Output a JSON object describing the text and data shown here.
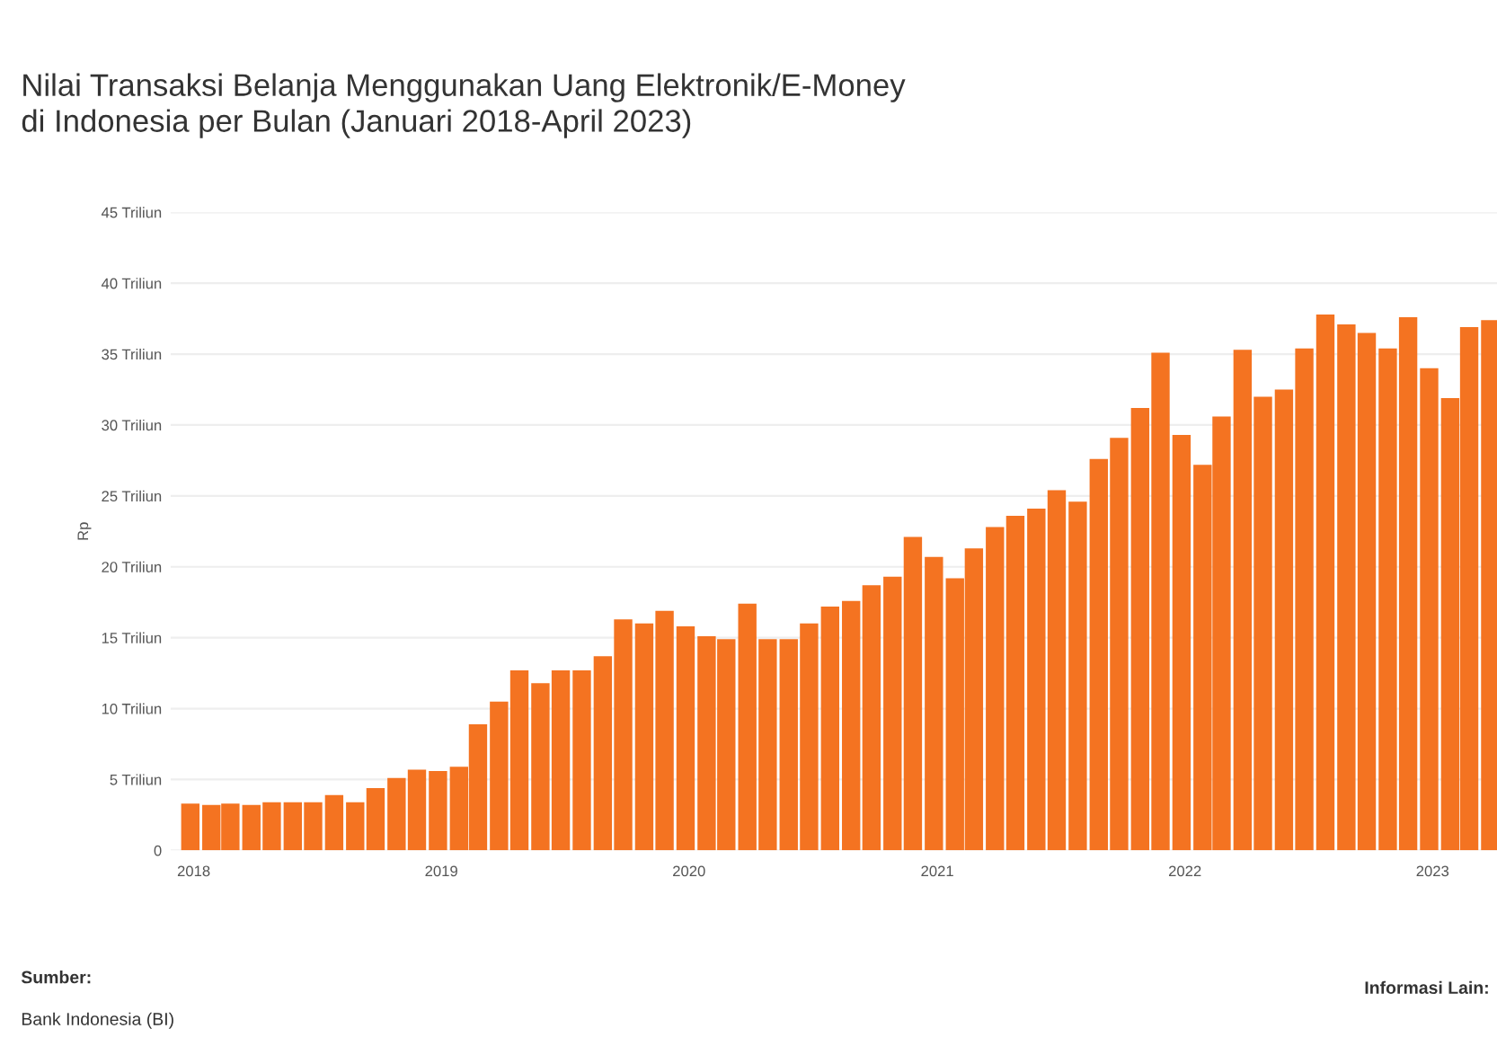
{
  "chart_data": {
    "type": "bar",
    "title": "Nilai Transaksi Belanja Menggunakan Uang Elektronik/E-Money\ndi Indonesia per Bulan (Januari 2018-April 2023)",
    "ylabel": "Rp",
    "x": [
      "2018-01",
      "2018-02",
      "2018-03",
      "2018-04",
      "2018-05",
      "2018-06",
      "2018-07",
      "2018-08",
      "2018-09",
      "2018-10",
      "2018-11",
      "2018-12",
      "2019-01",
      "2019-02",
      "2019-03",
      "2019-04",
      "2019-05",
      "2019-06",
      "2019-07",
      "2019-08",
      "2019-09",
      "2019-10",
      "2019-11",
      "2019-12",
      "2020-01",
      "2020-02",
      "2020-03",
      "2020-04",
      "2020-05",
      "2020-06",
      "2020-07",
      "2020-08",
      "2020-09",
      "2020-10",
      "2020-11",
      "2020-12",
      "2021-01",
      "2021-02",
      "2021-03",
      "2021-04",
      "2021-05",
      "2021-06",
      "2021-07",
      "2021-08",
      "2021-09",
      "2021-10",
      "2021-11",
      "2021-12",
      "2022-01",
      "2022-02",
      "2022-03",
      "2022-04",
      "2022-05",
      "2022-06",
      "2022-07",
      "2022-08",
      "2022-09",
      "2022-10",
      "2022-11",
      "2022-12",
      "2023-01",
      "2023-02",
      "2023-03",
      "2023-04"
    ],
    "values": [
      3.3,
      3.2,
      3.3,
      3.2,
      3.4,
      3.4,
      3.4,
      3.9,
      3.4,
      4.4,
      5.1,
      5.7,
      5.6,
      5.9,
      8.9,
      10.5,
      12.7,
      11.8,
      12.7,
      12.7,
      13.7,
      16.3,
      16.0,
      16.9,
      15.8,
      15.1,
      14.9,
      17.4,
      14.9,
      14.9,
      16.0,
      17.2,
      17.6,
      18.7,
      19.3,
      22.1,
      20.7,
      19.2,
      21.3,
      22.8,
      23.6,
      24.1,
      25.4,
      24.6,
      27.6,
      29.1,
      31.2,
      35.1,
      29.3,
      27.2,
      30.6,
      35.3,
      32.0,
      32.5,
      35.4,
      37.8,
      37.1,
      36.5,
      35.4,
      37.6,
      34.0,
      31.9,
      36.9,
      37.4
    ],
    "color": "#f47321",
    "xlim": [
      "2017-12-03",
      "2023-04-11"
    ],
    "xticks": [
      {
        "value": "2018-01-06",
        "label": "2018"
      },
      {
        "value": "2019-01-06",
        "label": "2019"
      },
      {
        "value": "2020-01-06",
        "label": "2020"
      },
      {
        "value": "2021-01-06",
        "label": "2021"
      },
      {
        "value": "2022-01-06",
        "label": "2022"
      },
      {
        "value": "2023-01-06",
        "label": "2023"
      }
    ],
    "ylim": [
      0,
      45
    ],
    "yticks": [
      0,
      {
        "value": 5,
        "label": "5 Triliun"
      },
      {
        "value": 10,
        "label": "10 Triliun"
      },
      {
        "value": 15,
        "label": "15 Triliun"
      },
      {
        "value": 20,
        "label": "20 Triliun"
      },
      {
        "value": 25,
        "label": "25 Triliun"
      },
      {
        "value": 30,
        "label": "30 Triliun"
      },
      {
        "value": 35,
        "label": "35 Triliun"
      },
      {
        "value": 40,
        "label": "40 Triliun"
      },
      {
        "value": 45,
        "label": "45 Triliun"
      }
    ],
    "grid": "y",
    "annotations": [
      "Sumber:",
      "Bank Indonesia (BI)",
      "Informasi Lain:"
    ]
  }
}
